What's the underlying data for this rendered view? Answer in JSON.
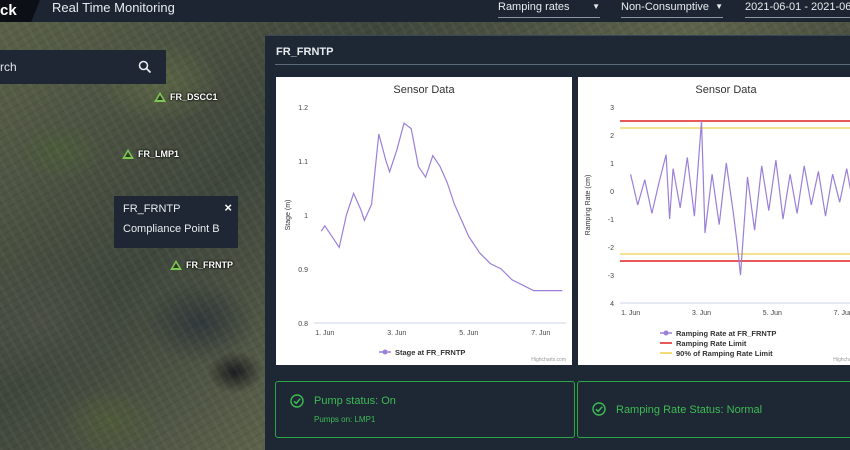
{
  "header": {
    "logo_text": "ck",
    "title": "Real Time Monitoring",
    "dropdowns": {
      "ramping": "Ramping rates",
      "consumptive": "Non-Consumptive",
      "date_range": "2021-06-01 - 2021-06-"
    }
  },
  "search": {
    "placeholder": "rch",
    "icon": "search-icon"
  },
  "map": {
    "markers": [
      {
        "label": "FR_DSCC1"
      },
      {
        "label": "FR_LMP1"
      },
      {
        "label": "FR_FRNTP"
      }
    ],
    "popup": {
      "title": "FR_FRNTP",
      "subtitle": "Compliance Point B",
      "close": "×"
    }
  },
  "panel": {
    "title": "FR_FRNTP",
    "status_pump": {
      "main": "Pump status: On",
      "sub": "Pumps on: LMP1"
    },
    "status_ramping": {
      "main": "Ramping Rate Status: Normal"
    }
  },
  "colors": {
    "accent_green": "#3dbb52",
    "series": "#9b7fd8",
    "limit": "#e02020",
    "limit90": "#f1d04a"
  },
  "chart_data": [
    {
      "type": "line",
      "title": "Sensor Data",
      "xlabel": "",
      "ylabel": "Stage (m)",
      "credit": "Highcharts.com",
      "x_ticks": [
        "1. Jun",
        "3. Jun",
        "5. Jun",
        "7. Jun"
      ],
      "y_ticks": [
        "1.2",
        "1.1",
        "1",
        "0.9",
        "0.8"
      ],
      "ylim": [
        0.8,
        1.2
      ],
      "xlim": [
        0.7,
        7.7
      ],
      "legend": [
        "Stage at FR_FRNTP"
      ],
      "series": [
        {
          "name": "Stage at FR_FRNTP",
          "x": [
            0.9,
            1.0,
            1.2,
            1.4,
            1.6,
            1.8,
            2.0,
            2.1,
            2.3,
            2.5,
            2.7,
            2.8,
            3.0,
            3.2,
            3.4,
            3.6,
            3.8,
            3.9,
            4.0,
            4.2,
            4.4,
            4.6,
            4.8,
            5.0,
            5.1,
            5.3,
            5.6,
            5.9,
            6.2,
            6.5,
            6.8,
            7.1,
            7.3,
            7.5,
            7.6
          ],
          "y": [
            0.97,
            0.98,
            0.96,
            0.94,
            1.0,
            1.04,
            1.01,
            0.99,
            1.02,
            1.15,
            1.1,
            1.08,
            1.12,
            1.17,
            1.16,
            1.09,
            1.07,
            1.09,
            1.11,
            1.09,
            1.06,
            1.02,
            0.99,
            0.96,
            0.95,
            0.93,
            0.91,
            0.9,
            0.88,
            0.87,
            0.86,
            0.86,
            0.86,
            0.86,
            0.86
          ]
        }
      ]
    },
    {
      "type": "line",
      "title": "Sensor Data",
      "xlabel": "",
      "ylabel": "Ramping Rate (cm)",
      "credit": "Highcharts.com",
      "x_ticks": [
        "1. Jun",
        "3. Jun",
        "5. Jun",
        "7. Jun"
      ],
      "y_ticks": [
        "3",
        "2",
        "1",
        "0",
        "-1",
        "-2",
        "-3",
        "4"
      ],
      "ylim": [
        -4,
        3
      ],
      "xlim": [
        0.7,
        7.7
      ],
      "legend": [
        "Ramping Rate at FR_FRNTP",
        "Ramping Rate Limit",
        "90% of Ramping Rate Limit"
      ],
      "series": [
        {
          "name": "Ramping Rate at FR_FRNTP",
          "x": [
            1.0,
            1.2,
            1.4,
            1.6,
            1.8,
            2.0,
            2.1,
            2.2,
            2.4,
            2.6,
            2.8,
            3.0,
            3.1,
            3.3,
            3.5,
            3.7,
            3.9,
            4.0,
            4.1,
            4.3,
            4.5,
            4.7,
            4.9,
            5.1,
            5.3,
            5.5,
            5.7,
            5.9,
            6.1,
            6.3,
            6.5,
            6.7,
            6.9,
            7.1,
            7.3,
            7.5,
            7.7
          ],
          "y": [
            0.6,
            -0.5,
            0.4,
            -0.8,
            0.3,
            1.3,
            -1.0,
            0.8,
            -0.6,
            1.2,
            -0.9,
            2.5,
            -1.5,
            0.6,
            -1.2,
            1.0,
            -0.8,
            -1.8,
            -3.0,
            0.5,
            -1.4,
            0.9,
            -0.7,
            1.1,
            -1.0,
            0.6,
            -0.8,
            0.9,
            -0.5,
            0.7,
            -0.9,
            0.6,
            -0.4,
            0.8,
            -0.6,
            0.5,
            -0.3
          ]
        },
        {
          "name": "Ramping Rate Limit",
          "values": [
            2.5,
            -2.5
          ]
        },
        {
          "name": "90% of Ramping Rate Limit",
          "values": [
            2.25,
            -2.25
          ]
        }
      ]
    }
  ]
}
